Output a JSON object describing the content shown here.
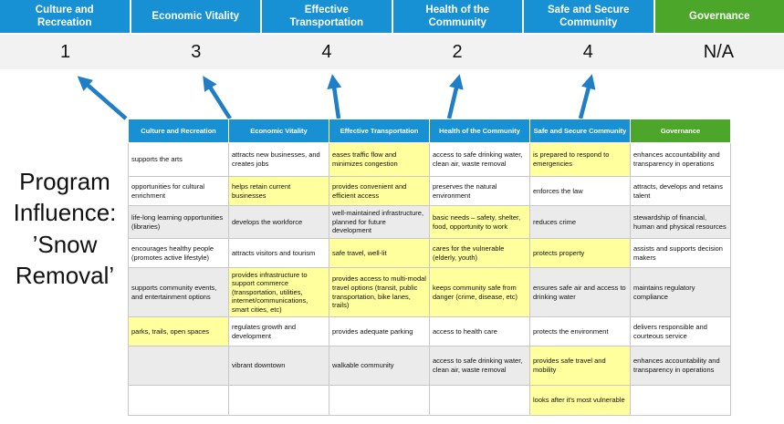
{
  "banner": {
    "items": [
      {
        "label": "Culture and Recreation",
        "score": "1",
        "theme": "blue"
      },
      {
        "label": "Economic Vitality",
        "score": "3",
        "theme": "blue"
      },
      {
        "label": "Effective Transportation",
        "score": "4",
        "theme": "blue"
      },
      {
        "label": "Health of the Community",
        "score": "2",
        "theme": "blue"
      },
      {
        "label": "Safe and Secure Community",
        "score": "4",
        "theme": "blue"
      },
      {
        "label": "Governance",
        "score": "N/A",
        "theme": "green"
      }
    ]
  },
  "program": {
    "lines": [
      "Program",
      "Influence:",
      "’Snow",
      "Removal’"
    ]
  },
  "matrix": {
    "headers": [
      {
        "label": "Culture and Recreation",
        "theme": "blue"
      },
      {
        "label": "Economic Vitality",
        "theme": "blue"
      },
      {
        "label": "Effective Transportation",
        "theme": "blue"
      },
      {
        "label": "Health of the Community",
        "theme": "blue"
      },
      {
        "label": "Safe and Secure Community",
        "theme": "blue"
      },
      {
        "label": "Governance",
        "theme": "green"
      }
    ],
    "rows": [
      {
        "shaded": false,
        "cells": [
          {
            "text": "supports the arts",
            "hl": false
          },
          {
            "text": "attracts new businesses, and creates jobs",
            "hl": false
          },
          {
            "text": "eases traffic flow and minimizes congestion",
            "hl": true
          },
          {
            "text": "access to safe drinking water, clean air, waste removal",
            "hl": false
          },
          {
            "text": "is prepared to respond to emergencies",
            "hl": true
          },
          {
            "text": "enhances accountability and transparency in operations",
            "hl": false
          }
        ]
      },
      {
        "shaded": false,
        "cells": [
          {
            "text": "opportunities for cultural enrichment",
            "hl": false
          },
          {
            "text": "helps retain current businesses",
            "hl": true
          },
          {
            "text": "provides convenient and efficient access",
            "hl": true
          },
          {
            "text": "preserves the natural environment",
            "hl": false
          },
          {
            "text": "enforces the law",
            "hl": false
          },
          {
            "text": "attracts, develops and retains talent",
            "hl": false
          }
        ]
      },
      {
        "shaded": true,
        "cells": [
          {
            "text": "life-long learning opportunities (libraries)",
            "hl": false
          },
          {
            "text": "develops the workforce",
            "hl": false
          },
          {
            "text": "well-maintained infrastructure, planned for future development",
            "hl": false
          },
          {
            "text": "basic needs – safety, shelter, food, opportunity to work",
            "hl": true
          },
          {
            "text": "reduces crime",
            "hl": false
          },
          {
            "text": "stewardship of financial, human and physical resources",
            "hl": false
          }
        ]
      },
      {
        "shaded": false,
        "cells": [
          {
            "text": "encourages healthy people (promotes active lifestyle)",
            "hl": false
          },
          {
            "text": "attracts visitors and tourism",
            "hl": false
          },
          {
            "text": "safe travel, well-lit",
            "hl": true
          },
          {
            "text": "cares for the vulnerable (elderly, youth)",
            "hl": true
          },
          {
            "text": "protects property",
            "hl": true
          },
          {
            "text": "assists and supports decision makers",
            "hl": false
          }
        ]
      },
      {
        "shaded": true,
        "cells": [
          {
            "text": "supports community events, and entertainment options",
            "hl": false
          },
          {
            "text": "provides infrastructure to support commerce (transportation, utilities, internet/communications, smart cities, etc)",
            "hl": true
          },
          {
            "text": "provides access to multi-modal travel options (transit, public transportation, bike lanes, trails)",
            "hl": true
          },
          {
            "text": "keeps community safe from danger (crime, disease, etc)",
            "hl": true
          },
          {
            "text": "ensures safe air and access to drinking water",
            "hl": false
          },
          {
            "text": "maintains regulatory compliance",
            "hl": false
          }
        ]
      },
      {
        "shaded": false,
        "cells": [
          {
            "text": "parks, trails, open spaces",
            "hl": true
          },
          {
            "text": "regulates growth and development",
            "hl": false
          },
          {
            "text": "provides adequate parking",
            "hl": false
          },
          {
            "text": "access to health care",
            "hl": false
          },
          {
            "text": "protects the environment",
            "hl": false
          },
          {
            "text": "delivers responsible and courteous service",
            "hl": false
          }
        ]
      },
      {
        "shaded": true,
        "cells": [
          {
            "text": "",
            "hl": false
          },
          {
            "text": "vibrant downtown",
            "hl": false
          },
          {
            "text": "walkable community",
            "hl": false
          },
          {
            "text": "access to safe drinking water, clean air, waste removal",
            "hl": false
          },
          {
            "text": "provides safe travel and mobility",
            "hl": true
          },
          {
            "text": "enhances accountability and transparency in operations",
            "hl": false
          }
        ]
      },
      {
        "shaded": false,
        "cells": [
          {
            "text": "",
            "hl": false
          },
          {
            "text": "",
            "hl": false
          },
          {
            "text": "",
            "hl": false
          },
          {
            "text": "",
            "hl": false
          },
          {
            "text": "looks after it's most vulnerable",
            "hl": true
          },
          {
            "text": "",
            "hl": false
          }
        ]
      }
    ]
  },
  "colors": {
    "blue": "#1791d4",
    "green": "#4ba629",
    "highlight": "#ffff9e",
    "arrow": "#1f7ec5",
    "score_bg": "#f2f2f2",
    "row_shade": "#ebebeb"
  }
}
